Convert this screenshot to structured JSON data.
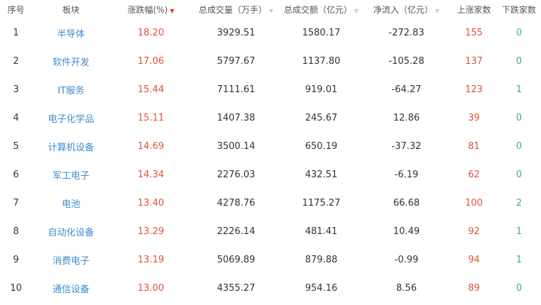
{
  "colors": {
    "up": "#e0523a",
    "down": "#3cb371",
    "link": "#3d8bcf",
    "sort_active": "#e0332b"
  },
  "headers": [
    {
      "label": "序号",
      "sort": null
    },
    {
      "label": "板块",
      "sort": null
    },
    {
      "label": "涨跌幅(%)",
      "sort": "desc-active"
    },
    {
      "label": "总成交量（万手）",
      "sort": "inactive"
    },
    {
      "label": "总成交额（亿元）",
      "sort": "inactive"
    },
    {
      "label": "净流入（亿元）",
      "sort": "inactive"
    },
    {
      "label": "上涨家数",
      "sort": null
    },
    {
      "label": "下跌家数",
      "sort": null
    }
  ],
  "rows": [
    [
      "1",
      "半导体",
      "18.20",
      "3929.51",
      "1580.17",
      "-272.83",
      "155",
      "0"
    ],
    [
      "2",
      "软件开发",
      "17.06",
      "5797.67",
      "1137.80",
      "-105.28",
      "137",
      "0"
    ],
    [
      "3",
      "IT服务",
      "15.44",
      "7111.61",
      "919.01",
      "-64.27",
      "123",
      "1"
    ],
    [
      "4",
      "电子化学品",
      "15.11",
      "1407.38",
      "245.67",
      "12.86",
      "39",
      "0"
    ],
    [
      "5",
      "计算机设备",
      "14.69",
      "3500.14",
      "650.19",
      "-37.32",
      "81",
      "0"
    ],
    [
      "6",
      "军工电子",
      "14.34",
      "2276.03",
      "432.51",
      "-6.19",
      "62",
      "0"
    ],
    [
      "7",
      "电池",
      "13.40",
      "4278.76",
      "1175.27",
      "66.68",
      "100",
      "2"
    ],
    [
      "8",
      "自动化设备",
      "13.29",
      "2226.14",
      "481.41",
      "10.49",
      "92",
      "1"
    ],
    [
      "9",
      "消费电子",
      "13.19",
      "5069.89",
      "879.88",
      "-0.99",
      "94",
      "1"
    ],
    [
      "10",
      "通信设备",
      "13.00",
      "4355.27",
      "954.16",
      "8.56",
      "89",
      "0"
    ]
  ]
}
